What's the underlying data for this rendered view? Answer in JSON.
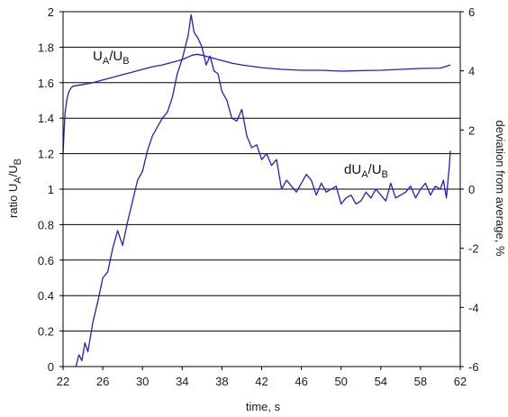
{
  "chart_data": {
    "type": "line",
    "xlabel": "time, s",
    "ylabel": "ratio UA/UB",
    "ylabel_parts": {
      "base": "ratio U",
      "sub1": "A",
      "slash": "/U",
      "sub2": "B"
    },
    "y2label": "deviation from average, %",
    "xlim": [
      22,
      62
    ],
    "ylim": [
      0,
      2
    ],
    "y2lim": [
      -6,
      6
    ],
    "x_ticks": [
      22,
      26,
      30,
      34,
      38,
      42,
      46,
      50,
      54,
      58,
      62
    ],
    "x_tick_labels": [
      "22",
      "26",
      "30",
      "34",
      "38",
      "42",
      "46",
      "50",
      "54",
      "58",
      "62"
    ],
    "y_ticks": [
      0,
      0.2,
      0.4,
      0.6,
      0.8,
      1,
      1.2,
      1.4,
      1.6,
      1.8,
      2
    ],
    "y_tick_labels": [
      "0",
      "0.2",
      "0.4",
      "0.6",
      "0.8",
      "1",
      "1.2",
      "1.4",
      "1.6",
      "1.8",
      "2"
    ],
    "y2_ticks": [
      -6,
      -4,
      -2,
      0,
      2,
      4,
      6
    ],
    "y2_tick_labels": [
      "-6",
      "-4",
      "-2",
      "0",
      "2",
      "4",
      "6"
    ],
    "grid": "horizontal",
    "line_color": "#1f1fd6",
    "annotations": [
      {
        "base": "U",
        "sub1": "A",
        "slash": "/U",
        "sub2": "B",
        "series": "ratio"
      },
      {
        "base": "dU",
        "sub1": "A",
        "slash": "/U",
        "sub2": "B",
        "series": "deviation"
      }
    ],
    "series": [
      {
        "name": "UA/UB",
        "axis": "left",
        "x": [
          22.0,
          22.1,
          22.2,
          22.4,
          22.6,
          22.8,
          23.0,
          23.5,
          24.0,
          25.0,
          26.0,
          27.0,
          28.0,
          29.0,
          30.0,
          31.0,
          32.0,
          33.0,
          34.0,
          35.0,
          35.5,
          36.0,
          37.0,
          38.0,
          39.0,
          40.0,
          42.0,
          44.0,
          46.0,
          48.0,
          50.0,
          52.0,
          54.0,
          56.0,
          58.0,
          60.0,
          61.0
        ],
        "values": [
          1.2,
          1.32,
          1.43,
          1.51,
          1.55,
          1.57,
          1.58,
          1.585,
          1.59,
          1.6,
          1.615,
          1.63,
          1.645,
          1.66,
          1.675,
          1.69,
          1.7,
          1.715,
          1.73,
          1.755,
          1.76,
          1.755,
          1.74,
          1.725,
          1.71,
          1.7,
          1.685,
          1.675,
          1.67,
          1.67,
          1.665,
          1.668,
          1.67,
          1.675,
          1.68,
          1.682,
          1.7
        ]
      },
      {
        "name": "dUA/UB",
        "axis": "right",
        "x": [
          23.3,
          23.6,
          23.9,
          24.2,
          24.5,
          25.0,
          25.5,
          26.0,
          26.5,
          27.0,
          27.5,
          28.0,
          28.5,
          29.0,
          29.5,
          30.0,
          30.5,
          31.0,
          31.5,
          32.0,
          32.5,
          33.0,
          33.5,
          34.0,
          34.3,
          34.6,
          34.9,
          35.2,
          35.6,
          36.0,
          36.4,
          36.8,
          37.2,
          37.6,
          38.0,
          38.5,
          39.0,
          39.5,
          40.0,
          40.5,
          41.0,
          41.5,
          42.0,
          42.5,
          43.0,
          43.5,
          44.0,
          44.5,
          45.0,
          45.5,
          46.0,
          46.5,
          47.0,
          47.5,
          48.0,
          48.5,
          49.0,
          49.5,
          50.0,
          50.5,
          51.0,
          51.5,
          52.0,
          52.5,
          53.0,
          53.5,
          54.0,
          54.5,
          55.0,
          55.5,
          56.0,
          56.5,
          57.0,
          57.5,
          58.0,
          58.5,
          59.0,
          59.5,
          60.0,
          60.3,
          60.6,
          60.9,
          61.0
        ],
        "values": [
          -6.0,
          -5.6,
          -5.8,
          -5.2,
          -5.5,
          -4.5,
          -3.8,
          -3.0,
          -2.8,
          -2.0,
          -1.4,
          -1.9,
          -1.1,
          -0.4,
          0.3,
          0.6,
          1.3,
          1.8,
          2.1,
          2.4,
          2.6,
          3.1,
          3.9,
          4.4,
          4.8,
          5.2,
          5.9,
          5.3,
          5.1,
          4.8,
          4.2,
          4.5,
          4.0,
          3.9,
          3.3,
          3.0,
          2.4,
          2.3,
          2.7,
          1.8,
          1.4,
          1.5,
          1.0,
          1.2,
          0.8,
          1.0,
          0.0,
          0.3,
          0.1,
          -0.1,
          0.2,
          0.5,
          0.3,
          -0.2,
          0.2,
          -0.1,
          0.0,
          0.1,
          -0.5,
          -0.3,
          -0.2,
          -0.5,
          -0.4,
          -0.1,
          -0.3,
          0.0,
          -0.2,
          -0.4,
          0.2,
          -0.3,
          -0.2,
          -0.1,
          0.1,
          -0.3,
          0.0,
          0.2,
          -0.2,
          0.1,
          0.0,
          0.3,
          -0.3,
          0.8,
          1.3
        ]
      }
    ]
  }
}
